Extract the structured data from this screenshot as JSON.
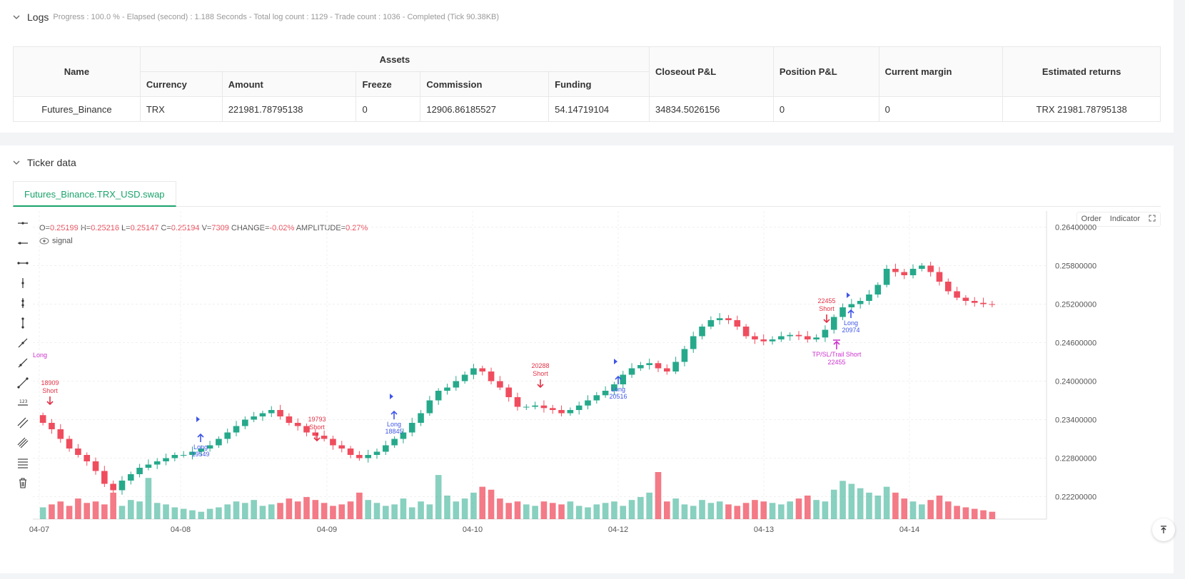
{
  "logs": {
    "title": "Logs",
    "subtitle": "Progress : 100.0 % - Elapsed (second) : 1.188  Seconds - Total log count : 1129 - Trade count : 1036 - Completed (Tick 90.38KB)"
  },
  "assets_table": {
    "headers": {
      "name": "Name",
      "assets": "Assets",
      "currency": "Currency",
      "amount": "Amount",
      "freeze": "Freeze",
      "commission": "Commission",
      "funding": "Funding",
      "closeout": "Closeout P&L",
      "position": "Position P&L",
      "margin": "Current margin",
      "returns": "Estimated returns"
    },
    "row": {
      "name": "Futures_Binance",
      "currency": "TRX",
      "amount": "221981.78795138",
      "freeze": "0",
      "commission": "12906.86185527",
      "funding": "54.14719104",
      "closeout": "34834.5026156",
      "position": "0",
      "margin": "0",
      "returns": "TRX 21981.78795138"
    }
  },
  "ticker": {
    "title": "Ticker data",
    "tab": "Futures_Binance.TRX_USD.swap"
  },
  "chart_header": {
    "o_label": "O=",
    "o": "0.25199",
    "h_label": "H=",
    "h": "0.25216",
    "l_label": "L=",
    "l": "0.25147",
    "c_label": "C=",
    "c": "0.25194",
    "v_label": "V=",
    "v": "7309",
    "change_label": "CHANGE=",
    "change": "-0.02%",
    "amp_label": "AMPLITUDE=",
    "amp": "0.27%",
    "signal": "signal",
    "order_btn": "Order",
    "indicator_btn": "Indicator"
  },
  "chart_data": {
    "type": "candlestick",
    "y_ticks": [
      "0.26400000",
      "0.25800000",
      "0.25200000",
      "0.24600000",
      "0.24000000",
      "0.23400000",
      "0.22800000",
      "0.22200000"
    ],
    "x_ticks": [
      "04-07",
      "04-08",
      "04-09",
      "04-10",
      "04-12",
      "04-13",
      "04-14"
    ],
    "ylim": [
      0.2185,
      0.2665
    ],
    "close_path": [
      0.2335,
      0.2325,
      0.231,
      0.2295,
      0.2285,
      0.2275,
      0.226,
      0.224,
      0.223,
      0.2245,
      0.2255,
      0.2265,
      0.227,
      0.2275,
      0.228,
      0.2285,
      0.2285,
      0.229,
      0.2295,
      0.23,
      0.231,
      0.232,
      0.233,
      0.234,
      0.2345,
      0.235,
      0.2355,
      0.2345,
      0.2335,
      0.233,
      0.232,
      0.2315,
      0.231,
      0.23,
      0.2295,
      0.2285,
      0.228,
      0.2285,
      0.229,
      0.23,
      0.231,
      0.232,
      0.2335,
      0.235,
      0.237,
      0.2385,
      0.239,
      0.24,
      0.241,
      0.242,
      0.2415,
      0.24,
      0.239,
      0.2375,
      0.236,
      0.236,
      0.2362,
      0.2358,
      0.2355,
      0.235,
      0.2355,
      0.2362,
      0.237,
      0.2378,
      0.2385,
      0.2395,
      0.241,
      0.242,
      0.2425,
      0.2428,
      0.242,
      0.2415,
      0.243,
      0.245,
      0.247,
      0.2485,
      0.2495,
      0.2498,
      0.2495,
      0.2485,
      0.247,
      0.2465,
      0.2462,
      0.2465,
      0.247,
      0.2472,
      0.247,
      0.2465,
      0.2468,
      0.248,
      0.25,
      0.2515,
      0.252,
      0.2525,
      0.2535,
      0.255,
      0.2575,
      0.257,
      0.2565,
      0.2575,
      0.258,
      0.257,
      0.2555,
      0.254,
      0.253,
      0.2525,
      0.2522,
      0.252,
      0.2519
    ],
    "volume": [
      8,
      10,
      12,
      9,
      14,
      11,
      12,
      10,
      18,
      9,
      13,
      12,
      28,
      11,
      10,
      8,
      7,
      6,
      5,
      7,
      8,
      10,
      12,
      11,
      13,
      9,
      10,
      11,
      14,
      12,
      15,
      13,
      11,
      9,
      10,
      12,
      18,
      13,
      11,
      9,
      10,
      14,
      8,
      12,
      10,
      30,
      16,
      12,
      14,
      18,
      22,
      20,
      14,
      11,
      12,
      10,
      9,
      12,
      11,
      10,
      12,
      9,
      8,
      10,
      11,
      12,
      9,
      13,
      15,
      18,
      32,
      12,
      14,
      10,
      9,
      13,
      11,
      12,
      10,
      9,
      11,
      13,
      12,
      11,
      10,
      12,
      14,
      16,
      13,
      12,
      20,
      26,
      24,
      21,
      18,
      16,
      22,
      18,
      14,
      12,
      10,
      13,
      16,
      12,
      9,
      8,
      7,
      6,
      5
    ],
    "annotations": [
      {
        "text": "Long",
        "sub": "",
        "kind": "long-label"
      },
      {
        "text": "18909",
        "sub": "Short",
        "kind": "short"
      },
      {
        "text": "Long",
        "sub": "19549",
        "kind": "long"
      },
      {
        "text": "19793",
        "sub": "Short",
        "kind": "short"
      },
      {
        "text": "Long",
        "sub": "18845",
        "kind": "long"
      },
      {
        "text": "20288",
        "sub": "Short",
        "kind": "short"
      },
      {
        "text": "Long",
        "sub": "20516",
        "kind": "long"
      },
      {
        "text": "22455",
        "sub": "Short",
        "kind": "short"
      },
      {
        "text": "Long",
        "sub": "20974",
        "kind": "long"
      },
      {
        "text": "TP/SL/Trail Short",
        "sub": "22455",
        "kind": "tp"
      }
    ],
    "colors": {
      "up": "#26a98b",
      "down": "#ef4d5e",
      "long": "#3f56e8",
      "short": "#e23246",
      "tp": "#cc33cc"
    }
  }
}
